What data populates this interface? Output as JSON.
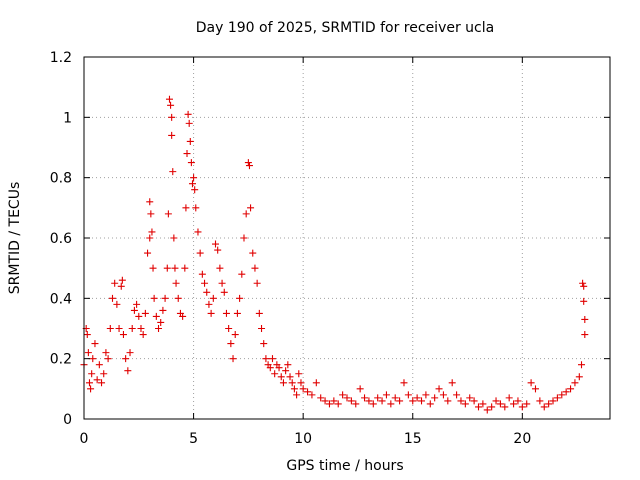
{
  "chart_data": {
    "type": "scatter",
    "title": "Day 190 of 2025, SRMTID for receiver ucla",
    "xlabel": "GPS time / hours",
    "ylabel": "SRMTID / TECUs",
    "xlim": [
      0,
      24
    ],
    "ylim": [
      0,
      1.2
    ],
    "xticks": [
      0,
      5,
      10,
      15,
      20
    ],
    "xtick_labels": [
      "0",
      "5",
      "10",
      "15",
      "20"
    ],
    "yticks": [
      0,
      0.2,
      0.4,
      0.6,
      0.8,
      1.0,
      1.2
    ],
    "ytick_labels": [
      "0",
      "0.2",
      "0.4",
      "0.6",
      "0.8",
      "1",
      "1.2"
    ],
    "grid": true,
    "marker": "+",
    "color": "#e00000",
    "series": [
      {
        "name": "SRMTID",
        "x": [
          0.0,
          0.1,
          0.15,
          0.2,
          0.25,
          0.3,
          0.35,
          0.4,
          0.5,
          0.6,
          0.7,
          0.8,
          0.9,
          1.0,
          1.1,
          1.2,
          1.3,
          1.4,
          1.5,
          1.6,
          1.7,
          1.75,
          1.8,
          1.9,
          2.0,
          2.1,
          2.2,
          2.3,
          2.4,
          2.5,
          2.6,
          2.7,
          2.8,
          2.9,
          3.0,
          3.0,
          3.05,
          3.1,
          3.15,
          3.2,
          3.3,
          3.4,
          3.5,
          3.6,
          3.7,
          3.8,
          3.85,
          3.9,
          3.95,
          4.0,
          4.0,
          4.05,
          4.1,
          4.15,
          4.2,
          4.3,
          4.4,
          4.5,
          4.6,
          4.65,
          4.7,
          4.75,
          4.8,
          4.85,
          4.9,
          4.95,
          5.0,
          5.05,
          5.1,
          5.2,
          5.3,
          5.4,
          5.5,
          5.6,
          5.7,
          5.8,
          5.9,
          6.0,
          6.1,
          6.2,
          6.3,
          6.4,
          6.5,
          6.6,
          6.7,
          6.8,
          6.9,
          7.0,
          7.1,
          7.2,
          7.3,
          7.4,
          7.5,
          7.55,
          7.6,
          7.7,
          7.8,
          7.9,
          8.0,
          8.1,
          8.2,
          8.3,
          8.4,
          8.5,
          8.6,
          8.7,
          8.8,
          8.9,
          9.0,
          9.1,
          9.2,
          9.3,
          9.4,
          9.5,
          9.6,
          9.7,
          9.8,
          9.9,
          10.0,
          10.2,
          10.4,
          10.6,
          10.8,
          11.0,
          11.2,
          11.4,
          11.6,
          11.8,
          12.0,
          12.2,
          12.4,
          12.6,
          12.8,
          13.0,
          13.2,
          13.4,
          13.6,
          13.8,
          14.0,
          14.2,
          14.4,
          14.6,
          14.8,
          15.0,
          15.2,
          15.4,
          15.6,
          15.8,
          16.0,
          16.2,
          16.4,
          16.6,
          16.8,
          17.0,
          17.2,
          17.4,
          17.6,
          17.8,
          18.0,
          18.2,
          18.4,
          18.6,
          18.8,
          19.0,
          19.2,
          19.4,
          19.6,
          19.8,
          20.0,
          20.2,
          20.4,
          20.6,
          20.8,
          21.0,
          21.2,
          21.4,
          21.6,
          21.8,
          22.0,
          22.2,
          22.4,
          22.6,
          22.7,
          22.75,
          22.8,
          22.8,
          22.85,
          22.85
        ],
        "y": [
          0.18,
          0.3,
          0.28,
          0.22,
          0.12,
          0.1,
          0.15,
          0.2,
          0.25,
          0.13,
          0.18,
          0.12,
          0.15,
          0.22,
          0.2,
          0.3,
          0.4,
          0.45,
          0.38,
          0.3,
          0.44,
          0.46,
          0.28,
          0.2,
          0.16,
          0.22,
          0.3,
          0.36,
          0.38,
          0.34,
          0.3,
          0.28,
          0.35,
          0.55,
          0.72,
          0.6,
          0.68,
          0.62,
          0.5,
          0.4,
          0.34,
          0.3,
          0.32,
          0.36,
          0.4,
          0.5,
          0.68,
          1.06,
          1.04,
          1.0,
          0.94,
          0.82,
          0.6,
          0.5,
          0.45,
          0.4,
          0.35,
          0.34,
          0.5,
          0.7,
          0.88,
          1.01,
          0.98,
          0.92,
          0.85,
          0.78,
          0.8,
          0.76,
          0.7,
          0.62,
          0.55,
          0.48,
          0.45,
          0.42,
          0.38,
          0.35,
          0.4,
          0.58,
          0.56,
          0.5,
          0.45,
          0.42,
          0.35,
          0.3,
          0.25,
          0.2,
          0.28,
          0.35,
          0.4,
          0.48,
          0.6,
          0.68,
          0.85,
          0.84,
          0.7,
          0.55,
          0.5,
          0.45,
          0.35,
          0.3,
          0.25,
          0.2,
          0.18,
          0.17,
          0.2,
          0.15,
          0.18,
          0.17,
          0.14,
          0.12,
          0.16,
          0.18,
          0.14,
          0.12,
          0.1,
          0.08,
          0.15,
          0.12,
          0.1,
          0.09,
          0.08,
          0.12,
          0.07,
          0.06,
          0.05,
          0.06,
          0.05,
          0.08,
          0.07,
          0.06,
          0.05,
          0.1,
          0.07,
          0.06,
          0.05,
          0.07,
          0.06,
          0.08,
          0.05,
          0.07,
          0.06,
          0.12,
          0.08,
          0.06,
          0.07,
          0.06,
          0.08,
          0.05,
          0.07,
          0.1,
          0.08,
          0.06,
          0.12,
          0.08,
          0.06,
          0.05,
          0.07,
          0.06,
          0.04,
          0.05,
          0.03,
          0.04,
          0.06,
          0.05,
          0.04,
          0.07,
          0.05,
          0.06,
          0.04,
          0.05,
          0.12,
          0.1,
          0.06,
          0.04,
          0.05,
          0.06,
          0.07,
          0.08,
          0.09,
          0.1,
          0.12,
          0.14,
          0.18,
          0.45,
          0.44,
          0.39,
          0.33,
          0.28
        ]
      }
    ]
  }
}
